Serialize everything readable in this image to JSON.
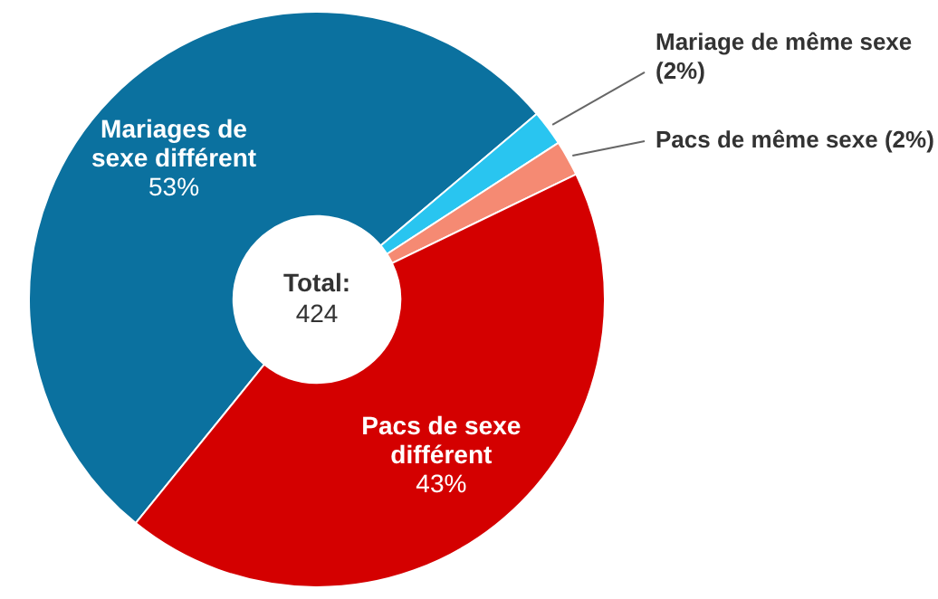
{
  "chart_data": {
    "type": "donut",
    "categories": [
      "Mariages de sexe différent",
      "Mariage de même sexe",
      "Pacs de même sexe",
      "Pacs de sexe différent"
    ],
    "values": [
      53,
      2,
      2,
      43
    ],
    "colors": [
      "#0b719f",
      "#29c5f0",
      "#f58a73",
      "#d40000"
    ],
    "value_labels": [
      "53%",
      "(2%)",
      "(2%)",
      "43%"
    ],
    "annotations": [
      "Total:\n424"
    ],
    "legend": false
  }
}
